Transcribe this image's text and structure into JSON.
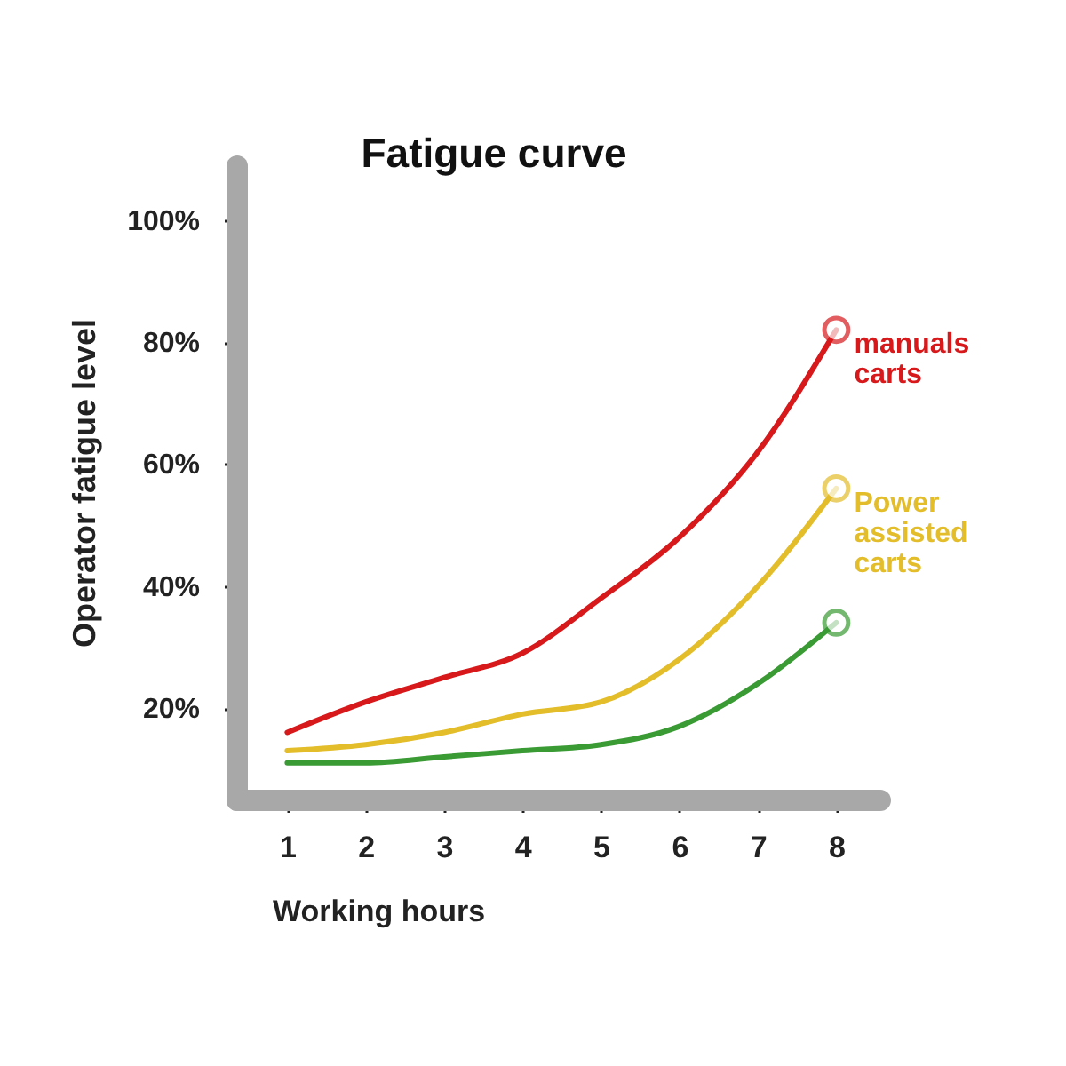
{
  "chart_data": {
    "type": "line",
    "title": "Fatigue curve",
    "xlabel": "Working hours",
    "ylabel": "Operator fatigue level",
    "x": [
      1,
      2,
      3,
      4,
      5,
      6,
      7,
      8
    ],
    "xlim": [
      0.35,
      8.55
    ],
    "xticks": [
      1,
      2,
      3,
      4,
      5,
      6,
      7,
      8
    ],
    "ylim": [
      5,
      109
    ],
    "yticks": [
      {
        "value": 20,
        "label": "20%"
      },
      {
        "value": 40,
        "label": "40%"
      },
      {
        "value": 60,
        "label": "60%"
      },
      {
        "value": 80,
        "label": "80%"
      },
      {
        "value": 100,
        "label": "100%"
      }
    ],
    "grid": false,
    "line_style": "solid",
    "series": [
      {
        "name": "manuals carts",
        "color": "#d7191c",
        "values": [
          16,
          21,
          25,
          29,
          38,
          48,
          62,
          82
        ]
      },
      {
        "name": "Power assisted carts",
        "color": "#e3bd2a",
        "values": [
          13,
          14,
          16,
          19,
          21,
          28,
          40,
          56
        ]
      },
      {
        "color": "#3a9b35",
        "values": [
          11,
          11,
          12,
          13,
          14,
          17,
          24,
          34
        ]
      }
    ]
  }
}
